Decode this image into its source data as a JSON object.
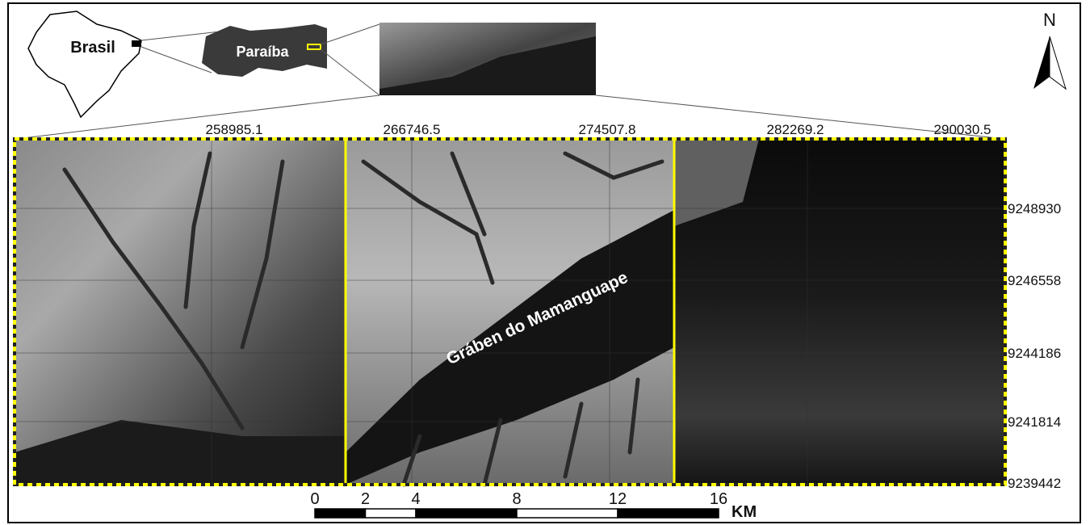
{
  "inset": {
    "country": "Brasil",
    "state": "Paraíba"
  },
  "north": "N",
  "map": {
    "label": "Gráben do Mamanguape",
    "x_coords": [
      258985.1,
      266746.5,
      274507.8,
      282269.2,
      290030.5
    ],
    "y_coords": [
      9248930,
      9246558,
      9244186,
      9241814,
      9239442
    ]
  },
  "scale_bar": {
    "ticks": [
      0,
      2,
      4,
      8,
      12,
      16
    ],
    "unit": "KM"
  }
}
